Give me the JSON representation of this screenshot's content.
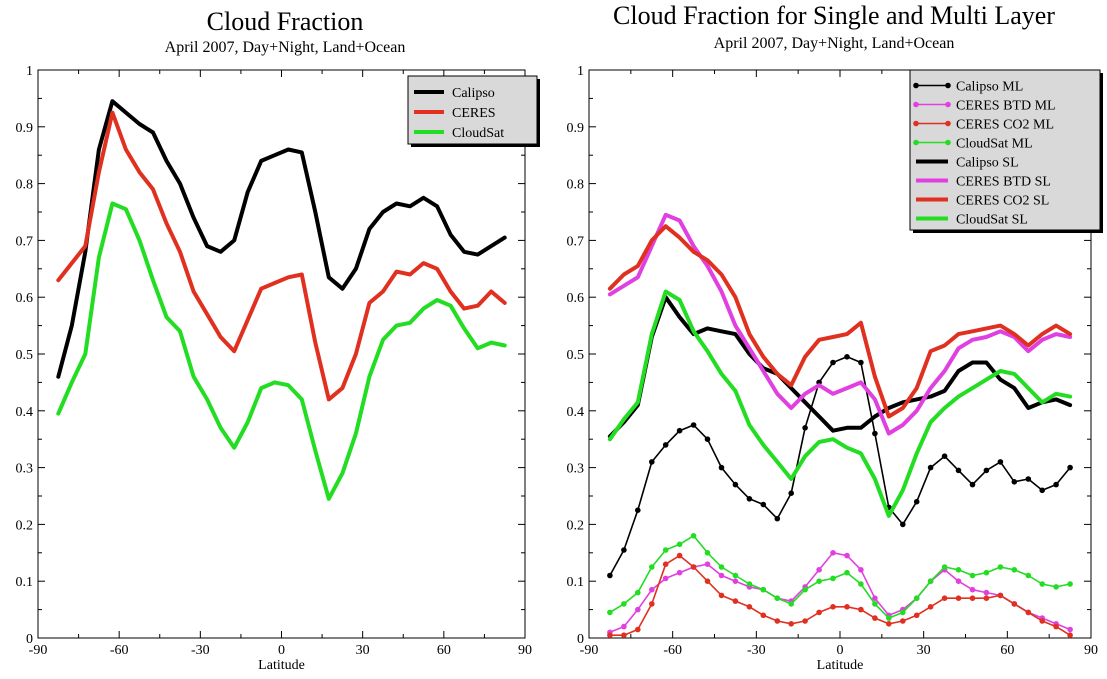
{
  "chart_data": [
    {
      "type": "line",
      "title": "Cloud Fraction",
      "subtitle": "April 2007, Day+Night, Land+Ocean",
      "xlabel": "Latitude",
      "ylabel": "",
      "xlim": [
        -90,
        90
      ],
      "ylim": [
        0,
        1
      ],
      "xticks": [
        -90,
        -60,
        -30,
        0,
        30,
        60,
        90
      ],
      "yticks": [
        0,
        0.1,
        0.2,
        0.3,
        0.4,
        0.5,
        0.6,
        0.7,
        0.8,
        0.9,
        1
      ],
      "grid": false,
      "legend_position": "top-right",
      "x": [
        -82.5,
        -77.5,
        -72.5,
        -67.5,
        -62.5,
        -57.5,
        -52.5,
        -47.5,
        -42.5,
        -37.5,
        -32.5,
        -27.5,
        -22.5,
        -17.5,
        -12.5,
        -7.5,
        -2.5,
        2.5,
        7.5,
        12.5,
        17.5,
        22.5,
        27.5,
        32.5,
        37.5,
        42.5,
        47.5,
        52.5,
        57.5,
        62.5,
        67.5,
        72.5,
        77.5,
        82.5
      ],
      "series": [
        {
          "name": "Calipso",
          "color": "#000000",
          "style": "thick",
          "values": [
            0.46,
            0.55,
            0.68,
            0.86,
            0.945,
            0.925,
            0.905,
            0.89,
            0.84,
            0.8,
            0.74,
            0.69,
            0.68,
            0.7,
            0.785,
            0.84,
            0.85,
            0.86,
            0.855,
            0.75,
            0.635,
            0.615,
            0.65,
            0.72,
            0.75,
            0.765,
            0.76,
            0.775,
            0.76,
            0.71,
            0.68,
            0.675,
            0.69,
            0.705
          ]
        },
        {
          "name": "CERES",
          "color": "#e03020",
          "style": "thick",
          "values": [
            0.63,
            0.66,
            0.69,
            0.82,
            0.925,
            0.86,
            0.82,
            0.79,
            0.73,
            0.68,
            0.61,
            0.57,
            0.53,
            0.505,
            0.56,
            0.615,
            0.625,
            0.635,
            0.64,
            0.52,
            0.42,
            0.44,
            0.5,
            0.59,
            0.61,
            0.645,
            0.64,
            0.66,
            0.65,
            0.61,
            0.58,
            0.585,
            0.61,
            0.59
          ]
        },
        {
          "name": "CloudSat",
          "color": "#22dd22",
          "style": "thick",
          "values": [
            0.395,
            0.45,
            0.5,
            0.67,
            0.765,
            0.755,
            0.7,
            0.63,
            0.565,
            0.54,
            0.46,
            0.42,
            0.37,
            0.335,
            0.38,
            0.44,
            0.45,
            0.445,
            0.42,
            0.33,
            0.245,
            0.29,
            0.36,
            0.46,
            0.525,
            0.55,
            0.555,
            0.58,
            0.595,
            0.585,
            0.545,
            0.51,
            0.52,
            0.515
          ]
        }
      ]
    },
    {
      "type": "line",
      "title": "Cloud Fraction for Single and Multi Layer",
      "subtitle": "April 2007, Day+Night, Land+Ocean",
      "xlabel": "Latitude",
      "ylabel": "",
      "xlim": [
        -90,
        90
      ],
      "ylim": [
        0,
        1
      ],
      "xticks": [
        -90,
        -60,
        -30,
        0,
        30,
        60,
        90
      ],
      "yticks": [
        0,
        0.1,
        0.2,
        0.3,
        0.4,
        0.5,
        0.6,
        0.7,
        0.8,
        0.9,
        1
      ],
      "grid": false,
      "legend_position": "top-right",
      "x": [
        -82.5,
        -77.5,
        -72.5,
        -67.5,
        -62.5,
        -57.5,
        -52.5,
        -47.5,
        -42.5,
        -37.5,
        -32.5,
        -27.5,
        -22.5,
        -17.5,
        -12.5,
        -7.5,
        -2.5,
        2.5,
        7.5,
        12.5,
        17.5,
        22.5,
        27.5,
        32.5,
        37.5,
        42.5,
        47.5,
        52.5,
        57.5,
        62.5,
        67.5,
        72.5,
        77.5,
        82.5
      ],
      "series": [
        {
          "name": "Calipso ML",
          "color": "#000000",
          "style": "thin-marker",
          "values": [
            0.11,
            0.155,
            0.225,
            0.31,
            0.34,
            0.365,
            0.375,
            0.35,
            0.3,
            0.27,
            0.245,
            0.235,
            0.21,
            0.255,
            0.37,
            0.45,
            0.485,
            0.495,
            0.485,
            0.36,
            0.23,
            0.2,
            0.24,
            0.3,
            0.32,
            0.295,
            0.27,
            0.295,
            0.31,
            0.275,
            0.28,
            0.26,
            0.27,
            0.3
          ]
        },
        {
          "name": "CERES BTD ML",
          "color": "#e040e0",
          "style": "thin-marker",
          "values": [
            0.01,
            0.02,
            0.05,
            0.085,
            0.105,
            0.115,
            0.125,
            0.13,
            0.11,
            0.1,
            0.09,
            0.085,
            0.07,
            0.065,
            0.09,
            0.12,
            0.15,
            0.145,
            0.12,
            0.07,
            0.04,
            0.05,
            0.07,
            0.1,
            0.12,
            0.1,
            0.085,
            0.08,
            0.075,
            0.06,
            0.045,
            0.035,
            0.025,
            0.015
          ]
        },
        {
          "name": "CERES CO2 ML",
          "color": "#e03020",
          "style": "thin-marker",
          "values": [
            0.005,
            0.005,
            0.015,
            0.06,
            0.13,
            0.145,
            0.125,
            0.1,
            0.075,
            0.065,
            0.055,
            0.04,
            0.03,
            0.025,
            0.03,
            0.045,
            0.055,
            0.055,
            0.05,
            0.035,
            0.025,
            0.03,
            0.04,
            0.055,
            0.07,
            0.07,
            0.07,
            0.07,
            0.075,
            0.06,
            0.045,
            0.03,
            0.02,
            0.005
          ]
        },
        {
          "name": "CloudSat ML",
          "color": "#22dd22",
          "style": "thin-marker",
          "values": [
            0.045,
            0.06,
            0.08,
            0.125,
            0.155,
            0.165,
            0.18,
            0.15,
            0.125,
            0.11,
            0.095,
            0.085,
            0.07,
            0.06,
            0.085,
            0.1,
            0.105,
            0.115,
            0.095,
            0.06,
            0.035,
            0.045,
            0.07,
            0.1,
            0.125,
            0.12,
            0.11,
            0.115,
            0.125,
            0.12,
            0.11,
            0.095,
            0.09,
            0.095
          ]
        },
        {
          "name": "Calipso SL",
          "color": "#000000",
          "style": "thick",
          "values": [
            0.355,
            0.38,
            0.41,
            0.53,
            0.6,
            0.565,
            0.535,
            0.545,
            0.54,
            0.535,
            0.5,
            0.475,
            0.465,
            0.44,
            0.415,
            0.39,
            0.365,
            0.37,
            0.37,
            0.39,
            0.405,
            0.415,
            0.42,
            0.425,
            0.435,
            0.47,
            0.485,
            0.485,
            0.455,
            0.44,
            0.405,
            0.415,
            0.42,
            0.41
          ]
        },
        {
          "name": "CERES BTD SL",
          "color": "#e040e0",
          "style": "thick",
          "values": [
            0.605,
            0.62,
            0.635,
            0.69,
            0.745,
            0.735,
            0.69,
            0.655,
            0.61,
            0.55,
            0.51,
            0.47,
            0.43,
            0.405,
            0.43,
            0.445,
            0.43,
            0.44,
            0.45,
            0.42,
            0.36,
            0.375,
            0.4,
            0.44,
            0.47,
            0.51,
            0.525,
            0.53,
            0.54,
            0.53,
            0.505,
            0.525,
            0.535,
            0.53
          ]
        },
        {
          "name": "CERES CO2 SL",
          "color": "#e03020",
          "style": "thick",
          "values": [
            0.615,
            0.64,
            0.655,
            0.7,
            0.725,
            0.705,
            0.68,
            0.665,
            0.64,
            0.6,
            0.535,
            0.495,
            0.465,
            0.445,
            0.495,
            0.525,
            0.53,
            0.535,
            0.555,
            0.46,
            0.39,
            0.405,
            0.44,
            0.505,
            0.515,
            0.535,
            0.54,
            0.545,
            0.55,
            0.535,
            0.515,
            0.535,
            0.55,
            0.535
          ]
        },
        {
          "name": "CloudSat SL",
          "color": "#22dd22",
          "style": "thick",
          "values": [
            0.35,
            0.385,
            0.415,
            0.535,
            0.61,
            0.595,
            0.54,
            0.505,
            0.465,
            0.435,
            0.375,
            0.34,
            0.31,
            0.28,
            0.32,
            0.345,
            0.35,
            0.335,
            0.325,
            0.28,
            0.215,
            0.26,
            0.325,
            0.38,
            0.405,
            0.425,
            0.44,
            0.455,
            0.47,
            0.465,
            0.44,
            0.415,
            0.43,
            0.425
          ]
        }
      ]
    }
  ]
}
